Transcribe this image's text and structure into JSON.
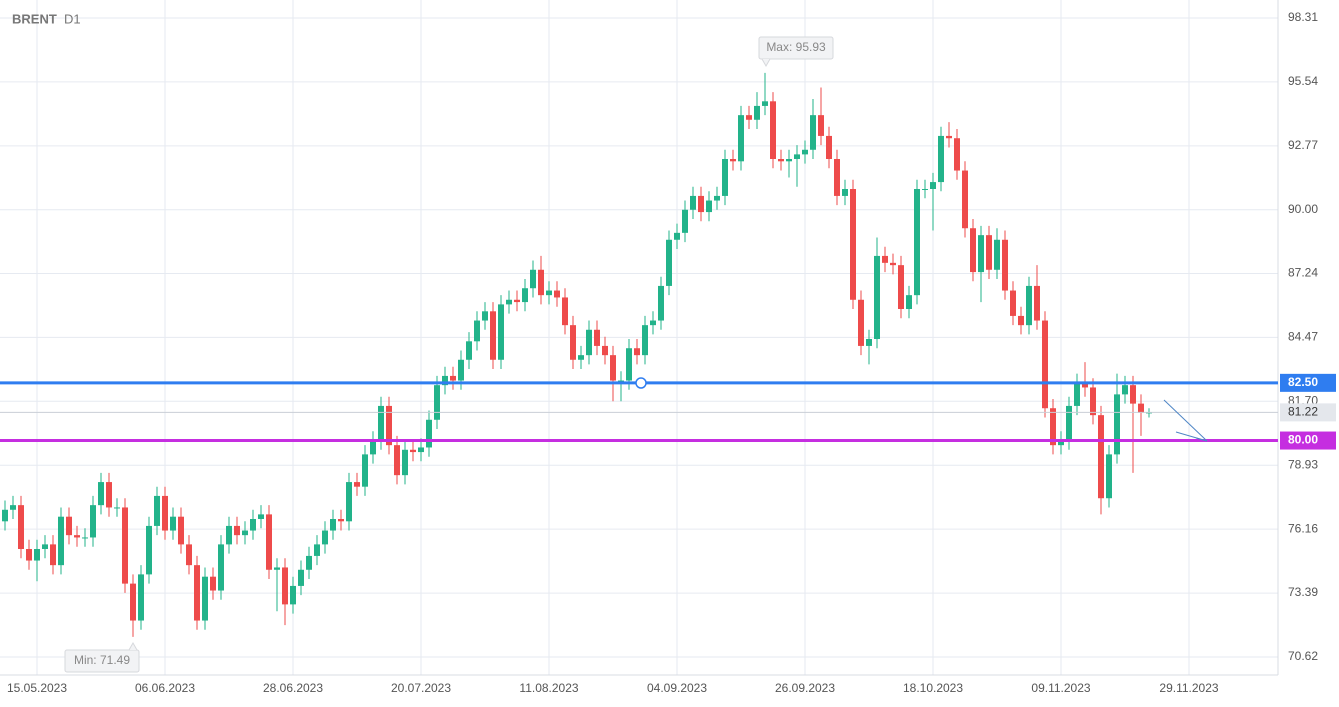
{
  "chart_data": {
    "type": "candlestick",
    "title": "BRENT",
    "subtitle": "D1",
    "up_color": "#22b38a",
    "down_color": "#ee4b4b",
    "grid": true,
    "xlim": [
      -0.625,
      159.125
    ],
    "xticks": [
      {
        "value": 4,
        "label": "15.05.2023"
      },
      {
        "value": 20,
        "label": "06.06.2023"
      },
      {
        "value": 36,
        "label": "28.06.2023"
      },
      {
        "value": 52,
        "label": "20.07.2023"
      },
      {
        "value": 68,
        "label": "11.08.2023"
      },
      {
        "value": 84,
        "label": "04.09.2023"
      },
      {
        "value": 100,
        "label": "26.09.2023"
      },
      {
        "value": 116,
        "label": "18.10.2023"
      },
      {
        "value": 132,
        "label": "09.11.2023"
      },
      {
        "value": 148,
        "label": "29.11.2023"
      }
    ],
    "ylim": [
      69.84,
      99.09
    ],
    "yticks": [
      98.31,
      95.54,
      92.77,
      {
        "value": 90,
        "label": "90.00"
      },
      87.24,
      84.47,
      {
        "value": 81.7,
        "label": "81.70"
      },
      78.93,
      76.16,
      73.39,
      70.62
    ],
    "levels": [
      {
        "value": 82.5,
        "label": "82.50",
        "color": "#2f7df0"
      },
      {
        "value": 80,
        "label": "80.00",
        "color": "#c52ee0"
      }
    ],
    "annotations": [
      "Max: 95.93",
      "Min: 71.49"
    ],
    "open": [
      76.5,
      77.0,
      77.2,
      75.3,
      74.8,
      75.3,
      75.5,
      74.6,
      76.7,
      75.9,
      75.8,
      75.8,
      77.2,
      78.2,
      77.1,
      77.1,
      73.8,
      72.2,
      74.2,
      76.3,
      77.6,
      76.1,
      76.7,
      75.5,
      74.6,
      72.2,
      74.1,
      73.5,
      75.5,
      76.3,
      75.9,
      76.1,
      76.6,
      76.8,
      74.4,
      74.5,
      72.9,
      73.7,
      74.4,
      75.0,
      75.5,
      76.1,
      76.6,
      76.5,
      78.2,
      78.0,
      79.4,
      80.0,
      81.5,
      79.8,
      78.5,
      79.6,
      79.5,
      79.7,
      80.9,
      82.4,
      82.8,
      82.6,
      83.5,
      84.3,
      85.2,
      85.6,
      83.5,
      85.9,
      86.1,
      86.0,
      86.6,
      87.4,
      86.3,
      86.5,
      86.2,
      85.0,
      83.5,
      83.7,
      84.8,
      84.1,
      83.7,
      82.6,
      82.6,
      84.0,
      83.7,
      85.0,
      85.2,
      86.7,
      88.7,
      89.0,
      90.0,
      90.6,
      89.9,
      90.4,
      90.6,
      92.2,
      92.1,
      94.1,
      93.9,
      94.5,
      94.7,
      92.2,
      92.1,
      92.2,
      92.4,
      92.6,
      94.1,
      93.2,
      92.2,
      90.6,
      90.9,
      86.1,
      84.1,
      84.4,
      88.0,
      87.7,
      87.6,
      85.7,
      86.3,
      90.9,
      90.9,
      91.2,
      93.2,
      93.1,
      91.7,
      89.2,
      87.3,
      88.9,
      87.4,
      88.7,
      86.5,
      85.4,
      85.0,
      86.7,
      85.2,
      81.4,
      79.8,
      80.0,
      81.5,
      82.5,
      82.3,
      81.1,
      77.5,
      79.4,
      82.0,
      82.4,
      81.6,
      81.2
    ],
    "high": [
      77.4,
      77.6,
      77.6,
      75.7,
      75.7,
      75.9,
      75.9,
      77.1,
      77.1,
      76.3,
      76.2,
      77.6,
      78.6,
      78.6,
      77.5,
      77.5,
      74.2,
      74.6,
      76.7,
      78.0,
      78.0,
      77.1,
      77.1,
      75.9,
      75.0,
      74.5,
      74.5,
      75.9,
      76.7,
      76.7,
      76.5,
      77.0,
      77.2,
      77.2,
      74.9,
      74.9,
      74.1,
      74.8,
      75.4,
      75.9,
      76.5,
      77.0,
      77.0,
      78.6,
      78.6,
      79.8,
      80.4,
      81.9,
      81.9,
      80.2,
      80.0,
      80.0,
      80.1,
      81.3,
      82.8,
      83.2,
      83.2,
      83.9,
      84.7,
      85.6,
      86.0,
      86.0,
      86.3,
      86.5,
      86.5,
      87.0,
      87.8,
      88.0,
      86.9,
      86.9,
      86.6,
      85.4,
      84.1,
      85.2,
      85.2,
      84.5,
      84.1,
      83.0,
      84.4,
      84.4,
      85.4,
      85.6,
      87.1,
      89.1,
      89.4,
      90.4,
      91.0,
      91.0,
      90.8,
      91.0,
      92.6,
      92.6,
      94.5,
      94.5,
      95.1,
      95.93,
      95.1,
      92.6,
      92.6,
      92.8,
      93.0,
      94.8,
      95.3,
      93.6,
      92.6,
      91.3,
      91.3,
      86.5,
      84.8,
      88.8,
      88.4,
      88.1,
      88.0,
      86.7,
      91.3,
      91.3,
      91.6,
      93.6,
      93.8,
      93.5,
      92.1,
      89.6,
      89.3,
      89.3,
      89.2,
      89.1,
      86.9,
      85.8,
      87.1,
      87.6,
      85.6,
      81.8,
      80.4,
      81.9,
      82.9,
      83.4,
      82.7,
      81.5,
      79.8,
      82.9,
      82.8,
      82.8,
      82.0,
      81.4
    ],
    "low": [
      76.1,
      76.6,
      74.9,
      74.4,
      73.9,
      74.9,
      74.2,
      74.2,
      75.5,
      75.4,
      75.4,
      75.4,
      76.8,
      76.7,
      76.7,
      73.4,
      71.49,
      71.8,
      73.8,
      75.9,
      75.7,
      75.7,
      75.1,
      74.2,
      71.8,
      71.8,
      73.1,
      73.1,
      75.1,
      75.5,
      75.5,
      75.7,
      76.2,
      74.0,
      72.6,
      72.0,
      72.5,
      73.3,
      74.0,
      74.6,
      75.1,
      75.7,
      76.1,
      76.1,
      77.6,
      77.6,
      79.0,
      79.6,
      79.4,
      78.1,
      78.1,
      79.1,
      79.1,
      79.3,
      80.5,
      82.0,
      82.2,
      82.2,
      83.1,
      83.9,
      84.8,
      83.1,
      83.1,
      85.5,
      85.6,
      85.6,
      86.2,
      85.9,
      85.9,
      85.8,
      84.6,
      83.1,
      83.1,
      83.3,
      83.7,
      83.3,
      81.7,
      81.7,
      82.2,
      83.3,
      83.3,
      84.6,
      84.8,
      86.3,
      88.3,
      88.6,
      89.6,
      89.5,
      89.5,
      90.0,
      90.2,
      91.7,
      91.7,
      93.5,
      93.5,
      94.1,
      91.8,
      91.7,
      91.4,
      91.0,
      92.0,
      92.2,
      92.8,
      91.8,
      90.2,
      90.2,
      85.7,
      83.7,
      83.3,
      84.0,
      87.3,
      87.2,
      85.3,
      85.3,
      85.9,
      90.5,
      89.1,
      90.8,
      92.7,
      91.3,
      88.8,
      86.9,
      86.0,
      87.0,
      87.0,
      86.1,
      85.0,
      84.6,
      84.6,
      84.8,
      81.0,
      79.4,
      79.4,
      79.6,
      81.1,
      81.9,
      80.7,
      76.8,
      77.1,
      79.0,
      81.6,
      78.6,
      80.2,
      81.0
    ],
    "close": [
      77.0,
      77.2,
      75.3,
      74.8,
      75.3,
      75.5,
      74.6,
      76.7,
      75.9,
      75.8,
      75.8,
      77.2,
      78.2,
      77.1,
      77.1,
      73.8,
      72.2,
      74.2,
      76.3,
      77.6,
      76.1,
      76.7,
      75.5,
      74.6,
      72.2,
      74.1,
      73.5,
      75.5,
      76.3,
      75.9,
      76.1,
      76.6,
      76.8,
      74.4,
      74.5,
      72.9,
      73.7,
      74.4,
      75.0,
      75.5,
      76.1,
      76.6,
      76.5,
      78.2,
      78.0,
      79.4,
      80.0,
      81.5,
      79.8,
      78.5,
      79.6,
      79.5,
      79.7,
      80.9,
      82.4,
      82.8,
      82.6,
      83.5,
      84.3,
      85.2,
      85.6,
      83.5,
      85.9,
      86.1,
      86.0,
      86.6,
      87.4,
      86.3,
      86.5,
      86.2,
      85.0,
      83.5,
      83.7,
      84.8,
      84.1,
      83.7,
      82.6,
      82.6,
      84.0,
      83.7,
      85.0,
      85.2,
      86.7,
      88.7,
      89.0,
      90.0,
      90.6,
      89.9,
      90.4,
      90.6,
      92.2,
      92.1,
      94.1,
      93.9,
      94.5,
      94.7,
      92.2,
      92.1,
      92.2,
      92.4,
      92.6,
      94.1,
      93.2,
      92.2,
      90.6,
      90.9,
      86.1,
      84.1,
      84.4,
      88.0,
      87.7,
      87.6,
      85.7,
      86.3,
      90.9,
      90.9,
      91.2,
      93.2,
      93.1,
      91.7,
      89.2,
      87.3,
      88.9,
      87.4,
      88.7,
      86.5,
      85.4,
      85.0,
      86.7,
      85.2,
      81.4,
      79.8,
      80.0,
      81.5,
      82.5,
      82.3,
      81.1,
      77.5,
      79.4,
      82.0,
      82.4,
      81.6,
      81.2,
      81.22
    ]
  }
}
